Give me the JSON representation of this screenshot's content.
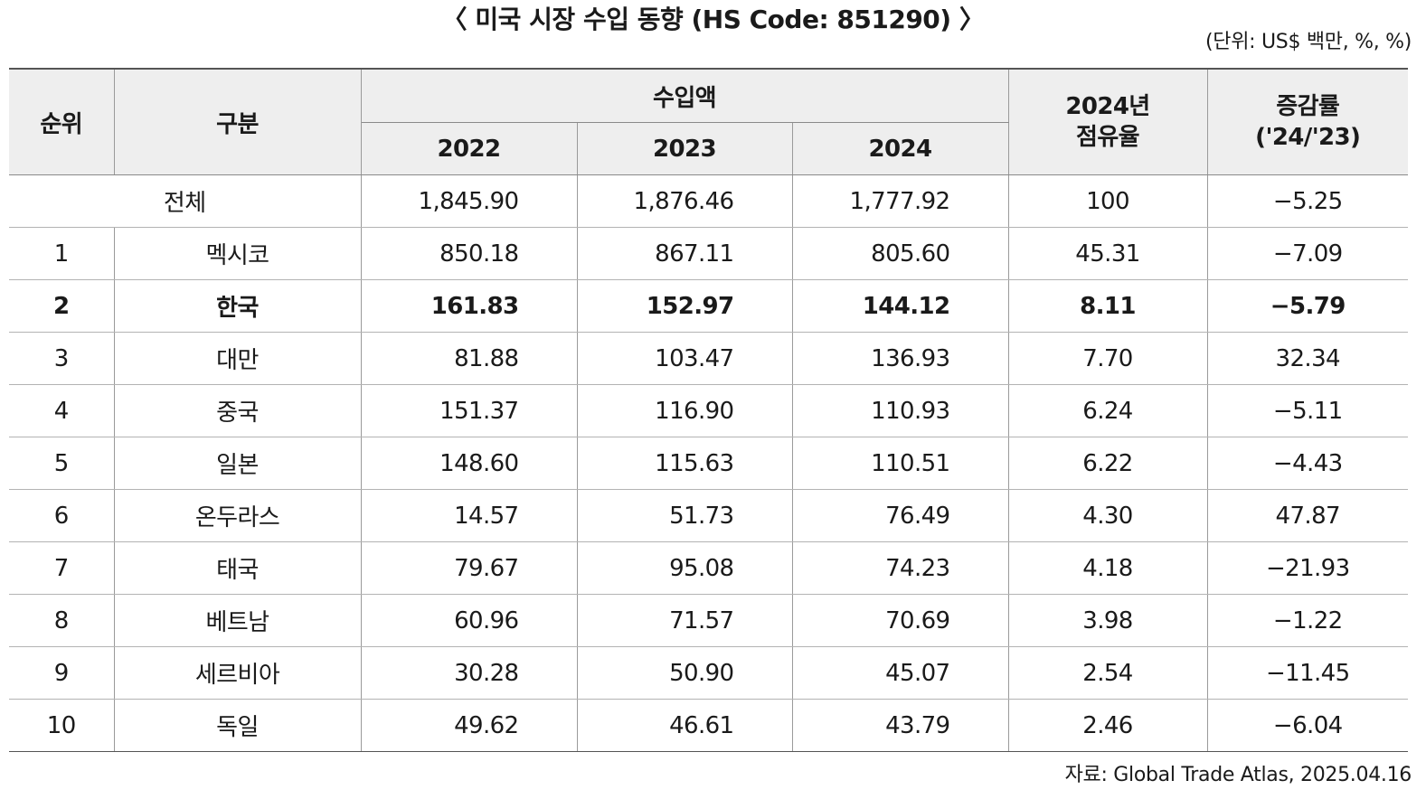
{
  "title": "〈 미국 시장 수입 동향 (HS Code: 851290) 〉",
  "unit_note": "(단위: US$ 백만, %, %)",
  "source_note": "자료: Global Trade Atlas, 2025.04.16",
  "headers": {
    "rank": "순위",
    "category": "구분",
    "import_value": "수입액",
    "y2022": "2022",
    "y2023": "2023",
    "y2024": "2024",
    "share_line1": "2024년",
    "share_line2": "점유율",
    "change_line1": "증감률",
    "change_line2": "('24/'23)"
  },
  "total": {
    "label": "전체",
    "y2022": "1,845.90",
    "y2023": "1,876.46",
    "y2024": "1,777.92",
    "share": "100",
    "change": "−5.25"
  },
  "rows": [
    {
      "rank": "1",
      "country": "멕시코",
      "y2022": "850.18",
      "y2023": "867.11",
      "y2024": "805.60",
      "share": "45.31",
      "change": "−7.09",
      "highlight": false
    },
    {
      "rank": "2",
      "country": "한국",
      "y2022": "161.83",
      "y2023": "152.97",
      "y2024": "144.12",
      "share": "8.11",
      "change": "−5.79",
      "highlight": true
    },
    {
      "rank": "3",
      "country": "대만",
      "y2022": "81.88",
      "y2023": "103.47",
      "y2024": "136.93",
      "share": "7.70",
      "change": "32.34",
      "highlight": false
    },
    {
      "rank": "4",
      "country": "중국",
      "y2022": "151.37",
      "y2023": "116.90",
      "y2024": "110.93",
      "share": "6.24",
      "change": "−5.11",
      "highlight": false
    },
    {
      "rank": "5",
      "country": "일본",
      "y2022": "148.60",
      "y2023": "115.63",
      "y2024": "110.51",
      "share": "6.22",
      "change": "−4.43",
      "highlight": false
    },
    {
      "rank": "6",
      "country": "온두라스",
      "y2022": "14.57",
      "y2023": "51.73",
      "y2024": "76.49",
      "share": "4.30",
      "change": "47.87",
      "highlight": false
    },
    {
      "rank": "7",
      "country": "태국",
      "y2022": "79.67",
      "y2023": "95.08",
      "y2024": "74.23",
      "share": "4.18",
      "change": "−21.93",
      "highlight": false
    },
    {
      "rank": "8",
      "country": "베트남",
      "y2022": "60.96",
      "y2023": "71.57",
      "y2024": "70.69",
      "share": "3.98",
      "change": "−1.22",
      "highlight": false
    },
    {
      "rank": "9",
      "country": "세르비아",
      "y2022": "30.28",
      "y2023": "50.90",
      "y2024": "45.07",
      "share": "2.54",
      "change": "−11.45",
      "highlight": false
    },
    {
      "rank": "10",
      "country": "독일",
      "y2022": "49.62",
      "y2023": "46.61",
      "y2024": "43.79",
      "share": "2.46",
      "change": "−6.04",
      "highlight": false
    }
  ]
}
